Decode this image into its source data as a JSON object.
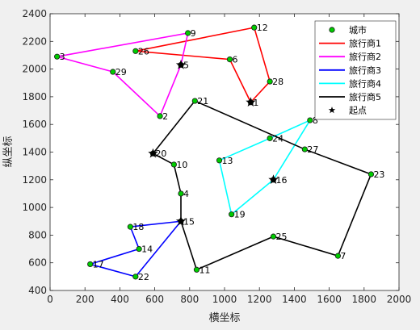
{
  "chart_data": {
    "type": "line",
    "title": "",
    "xlabel": "横坐标",
    "ylabel": "纵坐标",
    "xlim": [
      0,
      2000
    ],
    "ylim": [
      400,
      2400
    ],
    "xticks": [
      0,
      200,
      400,
      600,
      800,
      1000,
      1200,
      1400,
      1600,
      1800,
      2000
    ],
    "yticks": [
      400,
      600,
      800,
      1000,
      1200,
      1400,
      1600,
      1800,
      2000,
      2200,
      2400
    ],
    "grid": false,
    "legend_position": "top-right",
    "legend": [
      {
        "label": "城市",
        "kind": "marker",
        "color": "#00cc00"
      },
      {
        "label": "旅行商1",
        "kind": "line",
        "color": "#ff0000"
      },
      {
        "label": "旅行商2",
        "kind": "line",
        "color": "#ff00ff"
      },
      {
        "label": "旅行商3",
        "kind": "line",
        "color": "#0000ff"
      },
      {
        "label": "旅行商4",
        "kind": "line",
        "color": "#00ffff"
      },
      {
        "label": "旅行商5",
        "kind": "line",
        "color": "#000000"
      },
      {
        "label": "起点",
        "kind": "star",
        "color": "#000000"
      }
    ],
    "cities": [
      {
        "id": "1",
        "x": 1150,
        "y": 1760
      },
      {
        "id": "2",
        "x": 630,
        "y": 1660
      },
      {
        "id": "3",
        "x": 40,
        "y": 2090
      },
      {
        "id": "4",
        "x": 750,
        "y": 1100
      },
      {
        "id": "5",
        "x": 750,
        "y": 2030
      },
      {
        "id": "6",
        "x": 1030,
        "y": 2070
      },
      {
        "id": "7",
        "x": 1650,
        "y": 650
      },
      {
        "id": "8",
        "x": 1490,
        "y": 1630
      },
      {
        "id": "9",
        "x": 790,
        "y": 2260
      },
      {
        "id": "10",
        "x": 710,
        "y": 1310
      },
      {
        "id": "11",
        "x": 840,
        "y": 550
      },
      {
        "id": "12",
        "x": 1170,
        "y": 2300
      },
      {
        "id": "13",
        "x": 970,
        "y": 1340
      },
      {
        "id": "14",
        "x": 510,
        "y": 700
      },
      {
        "id": "15",
        "x": 750,
        "y": 900
      },
      {
        "id": "16",
        "x": 1280,
        "y": 1200
      },
      {
        "id": "17",
        "x": 230,
        "y": 590
      },
      {
        "id": "18",
        "x": 460,
        "y": 860
      },
      {
        "id": "19",
        "x": 1040,
        "y": 950
      },
      {
        "id": "20",
        "x": 590,
        "y": 1390
      },
      {
        "id": "21",
        "x": 830,
        "y": 1770
      },
      {
        "id": "22",
        "x": 490,
        "y": 500
      },
      {
        "id": "23",
        "x": 1840,
        "y": 1240
      },
      {
        "id": "24",
        "x": 1260,
        "y": 1500
      },
      {
        "id": "25",
        "x": 1280,
        "y": 790
      },
      {
        "id": "26",
        "x": 490,
        "y": 2130
      },
      {
        "id": "27",
        "x": 1460,
        "y": 1420
      },
      {
        "id": "28",
        "x": 1260,
        "y": 1910
      },
      {
        "id": "29",
        "x": 360,
        "y": 1980
      }
    ],
    "routes": [
      {
        "name": "旅行商1",
        "color": "#ff0000",
        "path": [
          "1",
          "6",
          "26",
          "12",
          "28",
          "1"
        ]
      },
      {
        "name": "旅行商2",
        "color": "#ff00ff",
        "path": [
          "5",
          "9",
          "3",
          "29",
          "2",
          "5"
        ]
      },
      {
        "name": "旅行商3",
        "color": "#0000ff",
        "path": [
          "15",
          "18",
          "14",
          "17",
          "22",
          "15"
        ]
      },
      {
        "name": "旅行商4",
        "color": "#00ffff",
        "path": [
          "16",
          "19",
          "13",
          "24",
          "8",
          "16"
        ]
      },
      {
        "name": "旅行商5",
        "color": "#000000",
        "path": [
          "20",
          "21",
          "27",
          "23",
          "7",
          "25",
          "11",
          "15",
          "4",
          "10",
          "20"
        ]
      }
    ],
    "start_points": [
      "1",
      "5",
      "15",
      "16",
      "20"
    ]
  }
}
